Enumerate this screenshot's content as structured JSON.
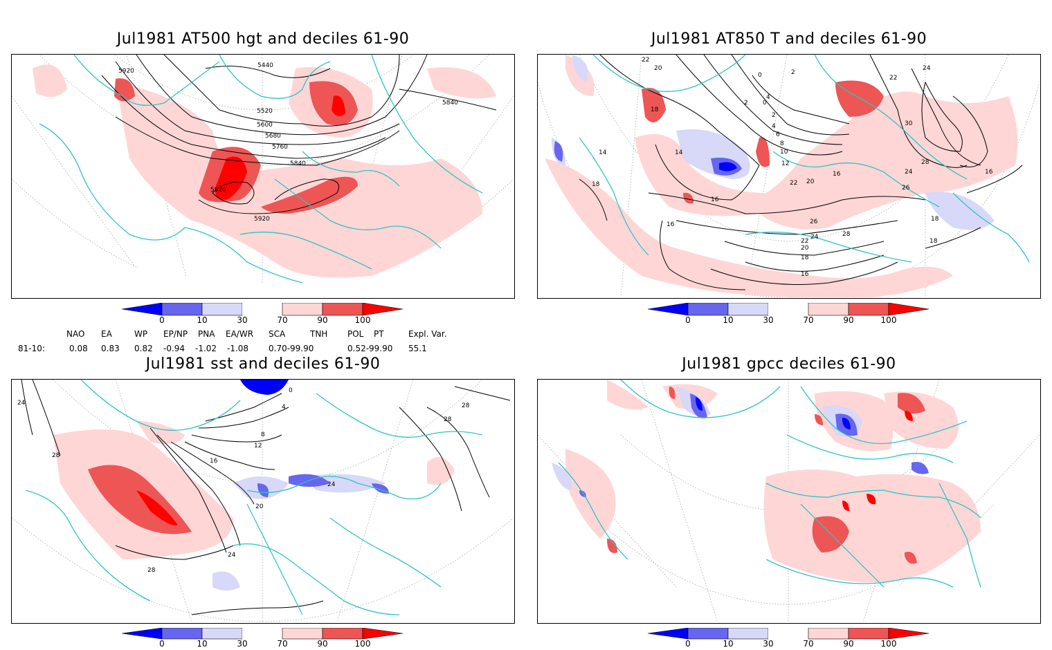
{
  "panels": [
    {
      "title": "Jul1981 AT500 hgt and deciles 61-90",
      "contour_labels": [
        "5440",
        "5920",
        "5520",
        "5600",
        "5680",
        "5760",
        "5840",
        "5920",
        "5920",
        "5840"
      ]
    },
    {
      "title": "Jul1981 AT850 T and deciles 61-90",
      "contour_labels": [
        "22",
        "20",
        "0",
        "2",
        "4",
        "2",
        "0",
        "2",
        "4",
        "6",
        "8",
        "10",
        "12",
        "14",
        "18",
        "14",
        "18",
        "16",
        "16",
        "20",
        "22",
        "24",
        "26",
        "28",
        "24",
        "22",
        "20",
        "18",
        "16",
        "16",
        "28",
        "26",
        "30",
        "24",
        "22",
        "18",
        "18",
        "16"
      ]
    },
    {
      "title": "Jul1981 sst and deciles 61-90",
      "contour_labels": [
        "24",
        "28",
        "4",
        "0",
        "8",
        "12",
        "16",
        "20",
        "24",
        "28",
        "24",
        "28",
        "28"
      ]
    },
    {
      "title": "Jul1981 gpcc deciles 61-90",
      "contour_labels": []
    }
  ],
  "colorbar": {
    "labels": [
      "0",
      "10",
      "30",
      "70",
      "90",
      "100"
    ],
    "colors": [
      "#0000ff",
      "#6666ee",
      "#d8d8f8",
      "#ffffff",
      "#ffd6d6",
      "#ee5555",
      "#ff0000"
    ]
  },
  "indices": {
    "header": [
      "NAO",
      "EA",
      "WP",
      "EP/NP",
      "PNA",
      "EA/WR",
      "SCA",
      "TNH",
      "POL",
      "PT",
      "Expl. Var."
    ],
    "row_label": "81-10:",
    "values": [
      "0.08",
      "0.83",
      "0.82",
      "-0.94",
      "-1.02",
      "-1.08",
      "0.70-99.90",
      "0.52-99.90",
      "55.1"
    ]
  }
}
